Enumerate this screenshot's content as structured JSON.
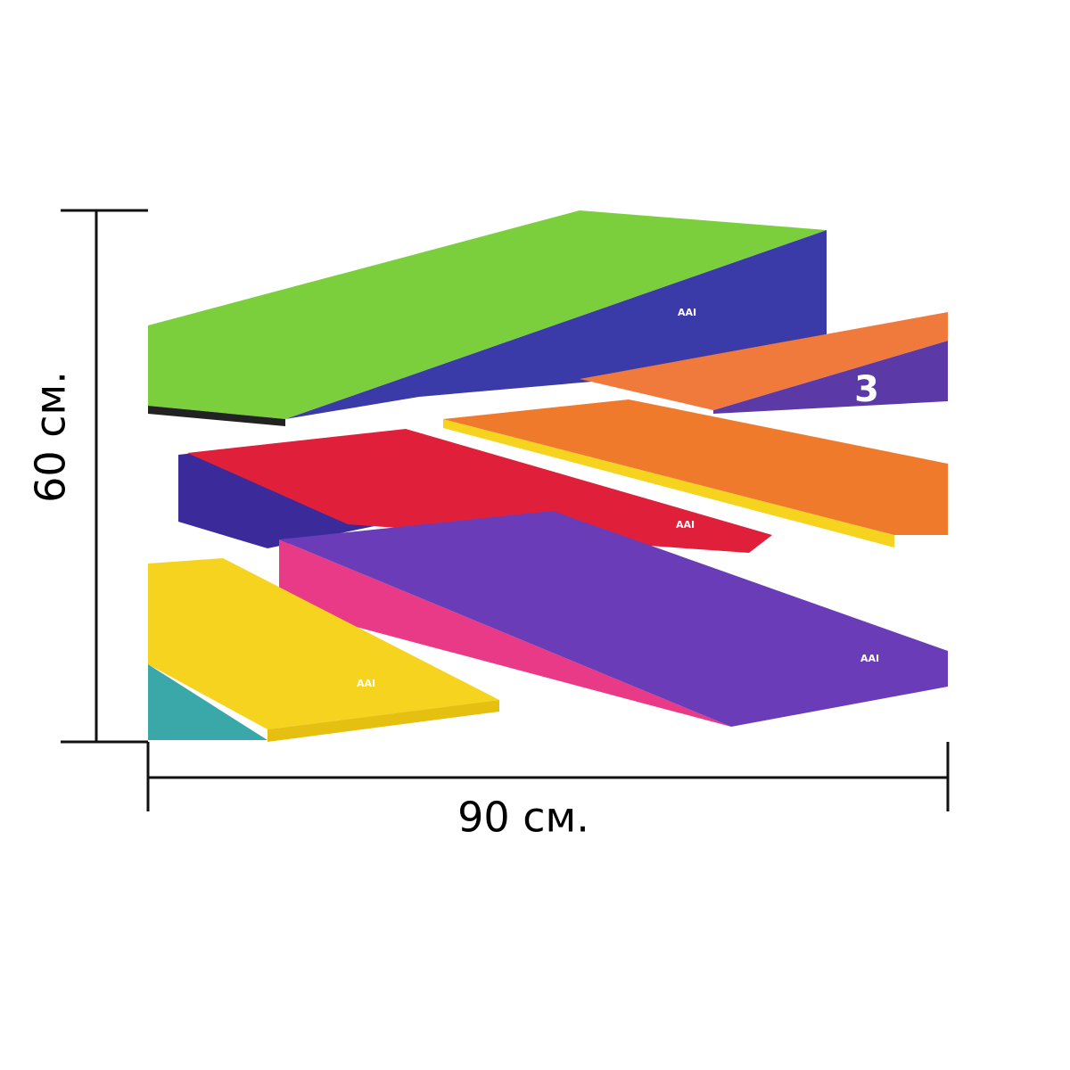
{
  "dimensions": {
    "height_label": "60 см.",
    "width_label": "90 см."
  },
  "product": {
    "brand": "AAI",
    "mat_number": "3"
  }
}
